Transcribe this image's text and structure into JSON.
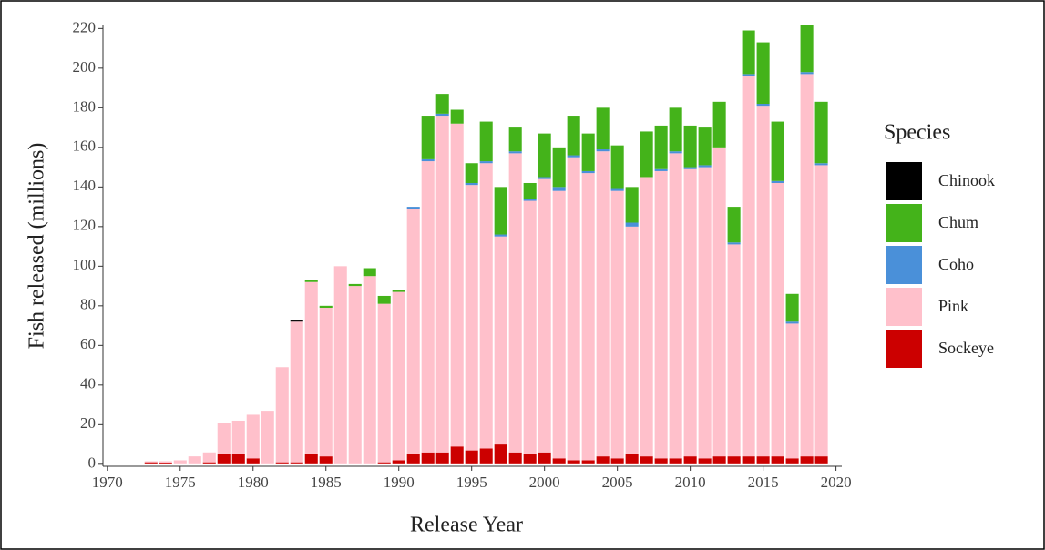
{
  "chart_data": {
    "type": "bar",
    "stacked": true,
    "x_label": "Release Year",
    "y_label": "Fish released (millions)",
    "legend_title": "Species",
    "legend": "right",
    "x": [
      1973,
      1974,
      1975,
      1976,
      1977,
      1978,
      1979,
      1980,
      1981,
      1982,
      1983,
      1984,
      1985,
      1986,
      1987,
      1988,
      1989,
      1990,
      1991,
      1992,
      1993,
      1994,
      1995,
      1996,
      1997,
      1998,
      1999,
      2000,
      2001,
      2002,
      2003,
      2004,
      2005,
      2006,
      2007,
      2008,
      2009,
      2010,
      2011,
      2012,
      2013,
      2014,
      2015,
      2016,
      2017,
      2018,
      2019
    ],
    "series": [
      {
        "name": "Sockeye",
        "color": "#cc0000",
        "values": [
          1,
          0.5,
          0,
          0,
          1,
          5,
          5,
          3,
          0,
          1,
          1,
          5,
          4,
          0,
          0,
          0,
          1,
          2,
          5,
          6,
          6,
          9,
          7,
          8,
          10,
          6,
          5,
          6,
          3,
          2,
          2,
          4,
          3,
          5,
          4,
          3,
          3,
          4,
          3,
          4,
          4,
          4,
          4,
          4,
          3,
          4,
          4
        ]
      },
      {
        "name": "Pink",
        "color": "#ffc0cb",
        "values": [
          0.5,
          1,
          2,
          4,
          5,
          16,
          17,
          22,
          27,
          48,
          71,
          87,
          75,
          100,
          90,
          95,
          80,
          85,
          124,
          147,
          170,
          163,
          134,
          144,
          105,
          151,
          128,
          138,
          135,
          153,
          145,
          154,
          135,
          115,
          141,
          145,
          154,
          145,
          147,
          156,
          107,
          192,
          177,
          138,
          68,
          193,
          147
        ]
      },
      {
        "name": "Coho",
        "color": "#4a90d9",
        "values": [
          0,
          0,
          0,
          0,
          0,
          0,
          0,
          0,
          0,
          0,
          0,
          0,
          0,
          0,
          0,
          0,
          0,
          0,
          1,
          1,
          1,
          0,
          1,
          1,
          1,
          1,
          1,
          1,
          2,
          1,
          1,
          1,
          1,
          2,
          0,
          1,
          1,
          1,
          1,
          0,
          1,
          1,
          1,
          1,
          1,
          1,
          1
        ]
      },
      {
        "name": "Chum",
        "color": "#44b31a",
        "values": [
          0,
          0,
          0,
          0,
          0,
          0,
          0,
          0,
          0,
          0,
          0,
          1,
          1,
          0,
          1,
          4,
          4,
          1,
          0,
          22,
          10,
          7,
          10,
          20,
          24,
          12,
          8,
          22,
          20,
          20,
          19,
          21,
          22,
          18,
          23,
          22,
          22,
          21,
          19,
          23,
          18,
          22,
          31,
          30,
          14,
          24,
          31
        ]
      },
      {
        "name": "Chinook",
        "color": "#000000",
        "values": [
          0,
          0,
          0,
          0,
          0,
          0,
          0,
          0,
          0,
          0,
          1,
          0,
          0,
          0,
          0,
          0,
          0,
          0,
          0,
          0,
          0,
          0,
          0,
          0,
          0,
          0,
          0,
          0,
          0,
          0,
          0,
          0,
          0,
          0,
          0,
          0,
          0,
          0,
          0,
          0,
          0,
          0,
          0,
          0,
          0,
          0,
          0
        ]
      }
    ],
    "xlim": [
      1969.7,
      2020.4
    ],
    "xticks": [
      1970,
      1975,
      1980,
      1985,
      1990,
      1995,
      2000,
      2005,
      2010,
      2015,
      2020
    ],
    "ylim": [
      -1,
      222
    ],
    "yticks": [
      0,
      20,
      40,
      60,
      80,
      100,
      120,
      140,
      160,
      180,
      200,
      220
    ]
  }
}
